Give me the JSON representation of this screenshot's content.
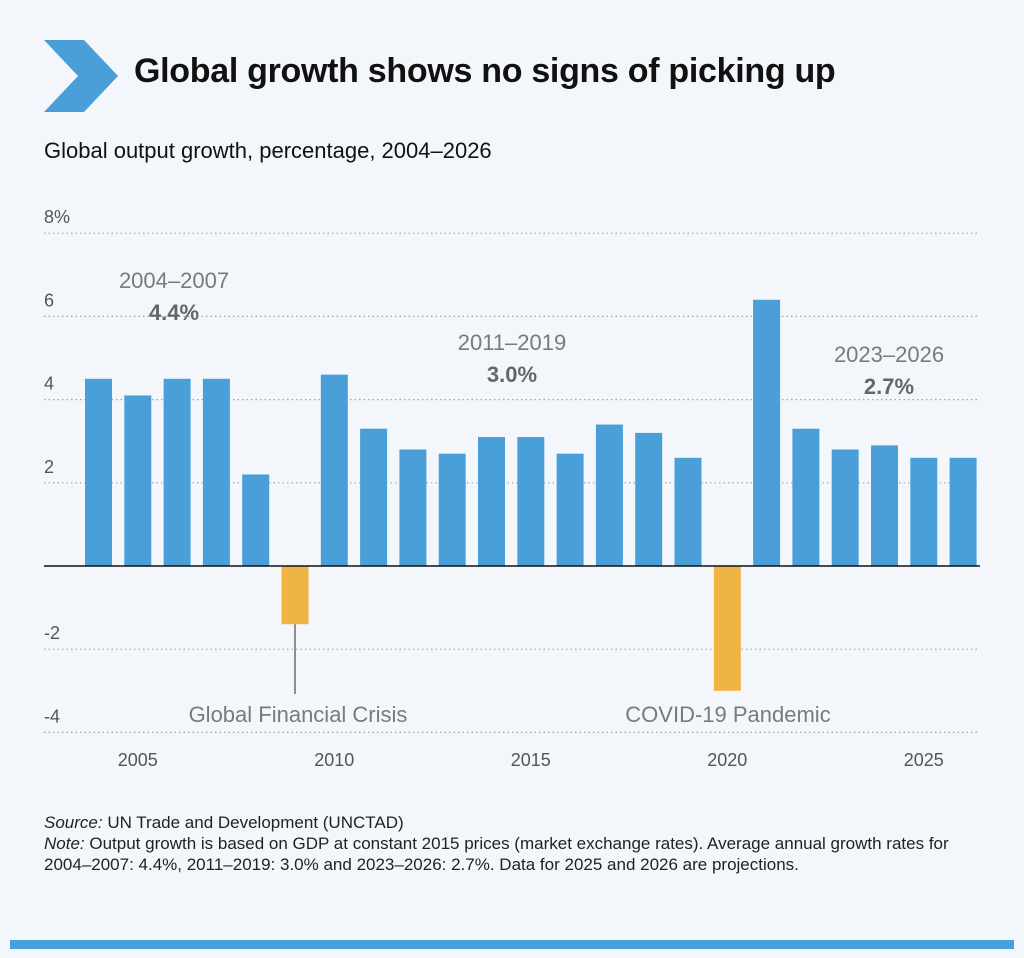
{
  "header": {
    "title": "Global growth shows no signs of picking up",
    "subtitle": "Global output growth, percentage, 2004–2026"
  },
  "colors": {
    "positive_bar": "#4a9fd9",
    "negative_bar": "#f0b445",
    "accent": "#4a9fd9",
    "gridline": "#9aa3ab",
    "annotation_text": "#7a7a7a"
  },
  "chart_data": {
    "type": "bar",
    "categories": [
      "2004",
      "2005",
      "2006",
      "2007",
      "2008",
      "2009",
      "2010",
      "2011",
      "2012",
      "2013",
      "2014",
      "2015",
      "2016",
      "2017",
      "2018",
      "2019",
      "2020",
      "2021",
      "2022",
      "2023",
      "2024",
      "2025",
      "2026"
    ],
    "values": [
      4.5,
      4.1,
      4.5,
      4.5,
      2.2,
      -1.4,
      4.6,
      3.3,
      2.8,
      2.7,
      3.1,
      3.1,
      2.7,
      3.4,
      3.2,
      2.6,
      -3.0,
      6.4,
      3.3,
      2.8,
      2.9,
      2.6,
      2.6
    ],
    "ylim": [
      -4,
      8
    ],
    "yticks": [
      {
        "value": 8,
        "label": "8%"
      },
      {
        "value": 6,
        "label": "6"
      },
      {
        "value": 4,
        "label": "4"
      },
      {
        "value": 2,
        "label": "2"
      },
      {
        "value": -2,
        "label": "-2"
      },
      {
        "value": -4,
        "label": "-4"
      }
    ],
    "xtick_labels": [
      "2005",
      "2010",
      "2015",
      "2020",
      "2025"
    ],
    "grid": true,
    "annotations": [
      {
        "period": "2004–2007",
        "average": "4.4%"
      },
      {
        "period": "2011–2019",
        "average": "3.0%"
      },
      {
        "period": "2023–2026",
        "average": "2.7%"
      }
    ],
    "events": [
      {
        "label": "Global Financial Crisis",
        "year": "2009"
      },
      {
        "label": "COVID-19 Pandemic",
        "year": "2020"
      }
    ]
  },
  "footer": {
    "source_label": "Source:",
    "source_text": " UN Trade and Development (UNCTAD)",
    "note_label": "Note:",
    "note_text": " Output growth is based on GDP at constant 2015 prices (market exchange rates). Average annual growth rates for 2004–2007: 4.4%, 2011–2019: 3.0% and 2023–2026: 2.7%. Data for 2025 and 2026 are projections."
  }
}
